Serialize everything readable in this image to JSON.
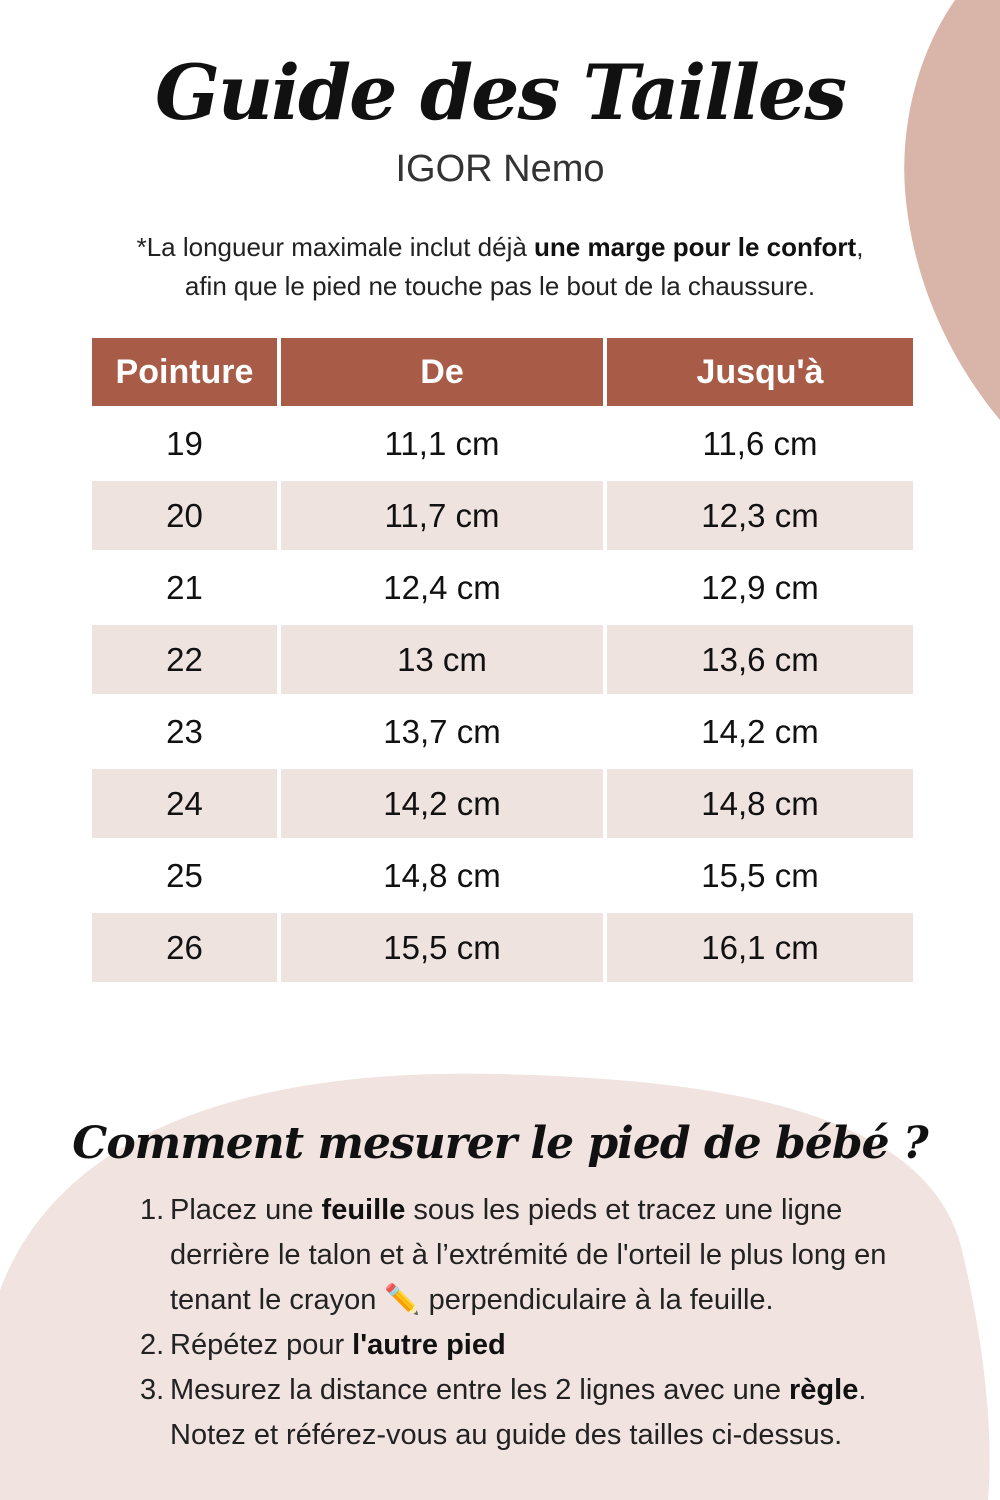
{
  "header": {
    "title": "Guide des Tailles",
    "subtitle": "IGOR Nemo"
  },
  "note": {
    "line1_pre": "*La longueur maximale inclut déjà ",
    "line1_bold": "une marge pour le confort",
    "line1_post": ",",
    "line2": "afin que le pied ne touche pas le bout de la chaussure."
  },
  "table": {
    "columns": [
      "Pointure",
      "De",
      "Jusqu'à"
    ],
    "rows": [
      [
        "19",
        "11,1 cm",
        "11,6 cm"
      ],
      [
        "20",
        "11,7 cm",
        "12,3 cm"
      ],
      [
        "21",
        "12,4 cm",
        "12,9 cm"
      ],
      [
        "22",
        "13 cm",
        "13,6 cm"
      ],
      [
        "23",
        "13,7 cm",
        "14,2 cm"
      ],
      [
        "24",
        "14,2 cm",
        "14,8 cm"
      ],
      [
        "25",
        "14,8 cm",
        "15,5 cm"
      ],
      [
        "26",
        "15,5 cm",
        "16,1 cm"
      ]
    ]
  },
  "howto": {
    "title": "Comment mesurer le pied de bébé ?",
    "steps": [
      {
        "num": "1.",
        "pre": "Placez une ",
        "bold": "feuille",
        "post": " sous les pieds et tracez une ligne derrière le talon et à l’extrémité de l'orteil le plus long en tenant le crayon ✏️ perpendiculaire à la feuille."
      },
      {
        "num": "2.",
        "pre": "Répétez pour ",
        "bold": "l'autre pied",
        "post": ""
      },
      {
        "num": "3.",
        "pre": "Mesurez la distance entre les 2 lignes avec une ",
        "bold": "règle",
        "post": ". Notez et référez-vous au guide des tailles ci-dessus."
      }
    ]
  },
  "colors": {
    "header_bg": "#a85b47",
    "row_alt": "#efe3df",
    "blob_top": "#d9b4a8",
    "blob_bottom": "#f1e3df"
  }
}
